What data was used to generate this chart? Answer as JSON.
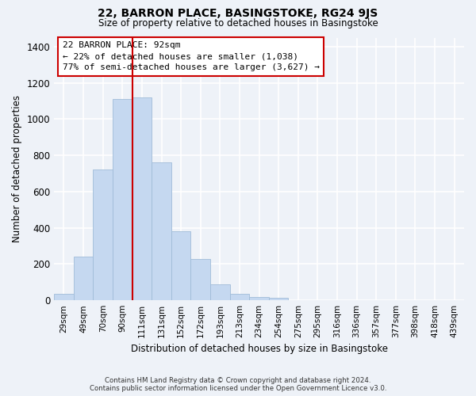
{
  "title": "22, BARRON PLACE, BASINGSTOKE, RG24 9JS",
  "subtitle": "Size of property relative to detached houses in Basingstoke",
  "xlabel": "Distribution of detached houses by size in Basingstoke",
  "ylabel": "Number of detached properties",
  "bar_labels": [
    "29sqm",
    "49sqm",
    "70sqm",
    "90sqm",
    "111sqm",
    "131sqm",
    "152sqm",
    "172sqm",
    "193sqm",
    "213sqm",
    "234sqm",
    "254sqm",
    "275sqm",
    "295sqm",
    "316sqm",
    "336sqm",
    "357sqm",
    "377sqm",
    "398sqm",
    "418sqm",
    "439sqm"
  ],
  "bar_heights": [
    35,
    240,
    720,
    1110,
    1120,
    760,
    380,
    230,
    90,
    35,
    20,
    15,
    0,
    0,
    0,
    0,
    0,
    0,
    0,
    0,
    0
  ],
  "bar_color": "#c5d8f0",
  "bar_edge_color": "#a0bcd8",
  "vline_color": "#cc0000",
  "annotation_title": "22 BARRON PLACE: 92sqm",
  "annotation_line1": "← 22% of detached houses are smaller (1,038)",
  "annotation_line2": "77% of semi-detached houses are larger (3,627) →",
  "annotation_box_color": "#ffffff",
  "annotation_box_edge": "#cc0000",
  "ylim": [
    0,
    1450
  ],
  "yticks": [
    0,
    200,
    400,
    600,
    800,
    1000,
    1200,
    1400
  ],
  "footer_line1": "Contains HM Land Registry data © Crown copyright and database right 2024.",
  "footer_line2": "Contains public sector information licensed under the Open Government Licence v3.0.",
  "bg_color": "#eef2f8",
  "grid_color": "#ffffff"
}
